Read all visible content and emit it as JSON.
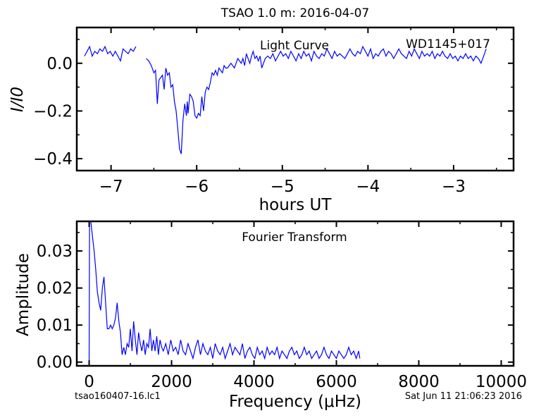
{
  "figure_title": "TSAO 1.0 m:  2016-04-07",
  "footer": {
    "left": "tsao160407-16.lc1",
    "right": "Sat Jun 11 21:06:23 2016"
  },
  "colors": {
    "line": "#0000ff",
    "axes": "#000000"
  },
  "chart_data": [
    {
      "type": "line",
      "annotations": [
        "Light Curve",
        "WD1145+017"
      ],
      "xlabel": "hours UT",
      "ylabel": "I/I0",
      "xlim": [
        -7.4,
        -2.3
      ],
      "ylim": [
        -0.45,
        0.15
      ],
      "xticks": [
        -7,
        -6,
        -5,
        -4,
        -3
      ],
      "xtick_labels": [
        "−7",
        "−6",
        "−5",
        "−4",
        "−3"
      ],
      "yticks": [
        0.0,
        -0.2,
        -0.4
      ],
      "ytick_labels": [
        "0.0",
        "−0.2",
        "−0.4"
      ],
      "grid": false,
      "series": [
        {
          "x": [
            -7.31,
            -7.28,
            -7.25,
            -7.22,
            -7.19,
            -7.16,
            -7.13,
            -7.1,
            -7.07,
            -7.04,
            -7.01,
            -6.98,
            -6.95,
            -6.92,
            -6.89,
            -6.86,
            -6.83,
            -6.8,
            -6.77,
            -6.74,
            -6.71
          ],
          "y": [
            0.03,
            0.05,
            0.07,
            0.03,
            0.05,
            0.04,
            0.06,
            0.05,
            0.07,
            0.04,
            0.05,
            0.03,
            0.05,
            0.03,
            0.01,
            0.06,
            0.05,
            0.04,
            0.06,
            0.05,
            0.07
          ]
        },
        {
          "x": [
            -6.59,
            -6.56,
            -6.53,
            -6.5,
            -6.48,
            -6.46,
            -6.44,
            -6.42,
            -6.4,
            -6.38,
            -6.36,
            -6.34,
            -6.32,
            -6.3,
            -6.28,
            -6.26,
            -6.24,
            -6.22,
            -6.2,
            -6.18,
            -6.16,
            -6.14,
            -6.12,
            -6.11,
            -6.1,
            -6.08,
            -6.06,
            -6.04,
            -6.02,
            -6.0,
            -5.98,
            -5.96,
            -5.94,
            -5.92,
            -5.9,
            -5.88,
            -5.86,
            -5.84,
            -5.82,
            -5.8,
            -5.78,
            -5.76,
            -5.74,
            -5.72,
            -5.7,
            -5.68,
            -5.66,
            -5.64,
            -5.62,
            -5.6,
            -5.58,
            -5.56,
            -5.54,
            -5.52,
            -5.5,
            -5.48,
            -5.46,
            -5.44,
            -5.42,
            -5.4,
            -5.38,
            -5.36,
            -5.34,
            -5.32,
            -5.3,
            -5.28,
            -5.26,
            -5.24,
            -5.22,
            -5.2,
            -5.17,
            -5.14,
            -5.11,
            -5.08,
            -5.05,
            -5.02,
            -4.99,
            -4.96,
            -4.93,
            -4.9,
            -4.87,
            -4.84,
            -4.81,
            -4.78,
            -4.75,
            -4.72,
            -4.69,
            -4.66,
            -4.63,
            -4.6,
            -4.57,
            -4.54,
            -4.51,
            -4.48,
            -4.45,
            -4.42,
            -4.39,
            -4.36,
            -4.33,
            -4.3,
            -4.27,
            -4.24,
            -4.21,
            -4.18,
            -4.15,
            -4.12,
            -4.09,
            -4.06,
            -4.03,
            -4.0,
            -3.97,
            -3.94,
            -3.91,
            -3.88,
            -3.85,
            -3.82,
            -3.79,
            -3.76,
            -3.73,
            -3.7,
            -3.67,
            -3.64,
            -3.61,
            -3.58,
            -3.55,
            -3.52,
            -3.49,
            -3.46,
            -3.43,
            -3.4,
            -3.37,
            -3.34,
            -3.31,
            -3.28,
            -3.25,
            -3.22,
            -3.19,
            -3.16,
            -3.13,
            -3.1,
            -3.07,
            -3.04,
            -3.01,
            -2.98,
            -2.95,
            -2.92,
            -2.89,
            -2.86,
            -2.83,
            -2.8,
            -2.77,
            -2.74,
            -2.71,
            -2.68,
            -2.65,
            -2.62
          ],
          "y": [
            0.02,
            0.01,
            -0.01,
            -0.04,
            -0.03,
            -0.17,
            -0.07,
            -0.06,
            -0.05,
            -0.11,
            -0.02,
            -0.05,
            -0.04,
            -0.1,
            -0.09,
            -0.16,
            -0.2,
            -0.28,
            -0.36,
            -0.38,
            -0.24,
            -0.17,
            -0.22,
            -0.16,
            -0.21,
            -0.13,
            -0.14,
            -0.16,
            -0.22,
            -0.23,
            -0.21,
            -0.22,
            -0.14,
            -0.2,
            -0.12,
            -0.1,
            -0.11,
            -0.08,
            -0.04,
            -0.05,
            -0.03,
            -0.05,
            -0.02,
            -0.03,
            -0.04,
            -0.01,
            -0.02,
            -0.02,
            -0.01,
            0.0,
            -0.01,
            -0.02,
            0.0,
            0.02,
            0.01,
            0.0,
            0.02,
            -0.01,
            0.04,
            0.02,
            0.0,
            0.03,
            0.05,
            0.02,
            0.03,
            0.01,
            0.03,
            -0.02,
            0.0,
            0.02,
            0.03,
            0.02,
            0.04,
            0.01,
            0.03,
            0.05,
            0.03,
            0.04,
            0.02,
            0.05,
            0.03,
            0.01,
            0.04,
            0.02,
            0.05,
            0.03,
            0.04,
            0.01,
            0.05,
            0.03,
            0.02,
            0.04,
            0.03,
            0.06,
            0.04,
            0.02,
            0.05,
            0.03,
            0.04,
            0.03,
            0.02,
            0.04,
            0.06,
            0.04,
            0.03,
            0.05,
            0.04,
            0.07,
            0.05,
            0.03,
            0.06,
            0.02,
            0.04,
            0.03,
            0.05,
            0.06,
            0.03,
            0.05,
            0.04,
            0.02,
            0.04,
            0.06,
            0.04,
            0.03,
            0.02,
            0.05,
            0.03,
            0.06,
            0.04,
            0.02,
            0.05,
            0.03,
            0.04,
            0.03,
            0.05,
            0.02,
            0.04,
            0.03,
            0.05,
            0.03,
            0.02,
            0.04,
            0.02,
            0.03,
            0.01,
            0.03,
            0.02,
            0.04,
            0.02,
            0.03,
            0.01,
            0.03,
            0.02,
            0.0,
            0.03,
            0.06
          ]
        }
      ]
    },
    {
      "type": "line",
      "annotations": [
        "Fourier Transform"
      ],
      "xlabel": "Frequency (μHz)",
      "ylabel": "Amplitude",
      "xlim": [
        -300,
        10300
      ],
      "ylim": [
        -0.001,
        0.038
      ],
      "xticks": [
        0,
        2000,
        4000,
        6000,
        8000,
        10000
      ],
      "xtick_labels": [
        "0",
        "2000",
        "4000",
        "6000",
        "8000",
        "10000"
      ],
      "yticks": [
        0.0,
        0.01,
        0.02,
        0.03
      ],
      "ytick_labels": [
        "0.00",
        "0.01",
        "0.02",
        "0.03"
      ],
      "grid": false,
      "series": [
        {
          "x": [
            0,
            10,
            40,
            80,
            120,
            160,
            200,
            240,
            280,
            320,
            360,
            400,
            440,
            480,
            520,
            560,
            600,
            640,
            680,
            720,
            760,
            800,
            840,
            880,
            920,
            960,
            1000,
            1040,
            1080,
            1120,
            1160,
            1200,
            1240,
            1280,
            1320,
            1360,
            1400,
            1440,
            1480,
            1520,
            1560,
            1600,
            1640,
            1680,
            1720,
            1760,
            1800,
            1860,
            1920,
            1980,
            2040,
            2100,
            2160,
            2220,
            2280,
            2340,
            2400,
            2460,
            2520,
            2580,
            2640,
            2700,
            2760,
            2820,
            2880,
            2940,
            3000,
            3060,
            3120,
            3180,
            3240,
            3300,
            3360,
            3420,
            3480,
            3540,
            3600,
            3660,
            3720,
            3780,
            3840,
            3900,
            3960,
            4020,
            4080,
            4140,
            4200,
            4260,
            4320,
            4380,
            4440,
            4500,
            4560,
            4620,
            4680,
            4740,
            4800,
            4860,
            4920,
            4980,
            5040,
            5100,
            5160,
            5220,
            5280,
            5340,
            5400,
            5460,
            5520,
            5580,
            5640,
            5700,
            5760,
            5820,
            5880,
            5940,
            6000,
            6060,
            6120,
            6180,
            6240,
            6300,
            6360,
            6420,
            6480,
            6540,
            6570
          ],
          "y": [
            0.0,
            0.038,
            0.038,
            0.034,
            0.03,
            0.025,
            0.019,
            0.016,
            0.014,
            0.02,
            0.023,
            0.016,
            0.009,
            0.009,
            0.01,
            0.009,
            0.01,
            0.012,
            0.016,
            0.011,
            0.008,
            0.002,
            0.004,
            0.002,
            0.005,
            0.004,
            0.009,
            0.003,
            0.011,
            0.006,
            0.002,
            0.008,
            0.005,
            0.003,
            0.006,
            0.002,
            0.005,
            0.004,
            0.009,
            0.003,
            0.006,
            0.003,
            0.007,
            0.002,
            0.006,
            0.004,
            0.003,
            0.005,
            0.002,
            0.006,
            0.003,
            0.004,
            0.002,
            0.006,
            0.003,
            0.002,
            0.005,
            0.003,
            0.001,
            0.004,
            0.006,
            0.002,
            0.005,
            0.003,
            0.002,
            0.004,
            0.001,
            0.005,
            0.003,
            0.002,
            0.004,
            0.001,
            0.003,
            0.005,
            0.002,
            0.004,
            0.003,
            0.002,
            0.005,
            0.001,
            0.003,
            0.004,
            0.002,
            0.001,
            0.004,
            0.002,
            0.003,
            0.001,
            0.004,
            0.002,
            0.003,
            0.002,
            0.004,
            0.001,
            0.003,
            0.002,
            0.001,
            0.003,
            0.004,
            0.002,
            0.003,
            0.001,
            0.002,
            0.004,
            0.002,
            0.003,
            0.001,
            0.002,
            0.003,
            0.001,
            0.002,
            0.004,
            0.002,
            0.001,
            0.003,
            0.002,
            0.001,
            0.003,
            0.002,
            0.001,
            0.002,
            0.004,
            0.002,
            0.003,
            0.001,
            0.003,
            0.001
          ]
        }
      ]
    }
  ]
}
